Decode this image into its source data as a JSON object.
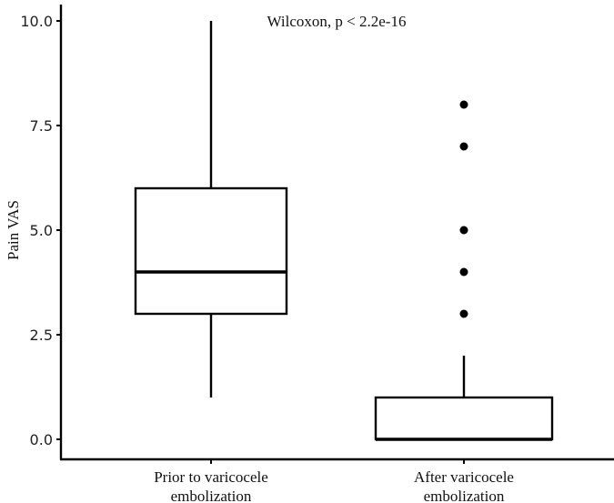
{
  "chart_data": {
    "type": "boxplot",
    "title": "",
    "annotation": "Wilcoxon, p < 2.2e-16",
    "xlabel": "",
    "ylabel": "Pain VAS",
    "ylim": [
      0,
      10
    ],
    "yticks": [
      "0.0",
      "2.5",
      "5.0",
      "7.5",
      "10.0"
    ],
    "grid": false,
    "categories": [
      {
        "label_lines": [
          "Prior to varicocele",
          "embolization"
        ],
        "min": 1,
        "q1": 3,
        "median": 4,
        "q3": 6,
        "max": 10,
        "outliers": []
      },
      {
        "label_lines": [
          "After varicocele",
          "embolization"
        ],
        "min": 0,
        "q1": 0,
        "median": 0,
        "q3": 1,
        "max": 2,
        "outliers": [
          3,
          4,
          5,
          7,
          8
        ]
      }
    ]
  }
}
